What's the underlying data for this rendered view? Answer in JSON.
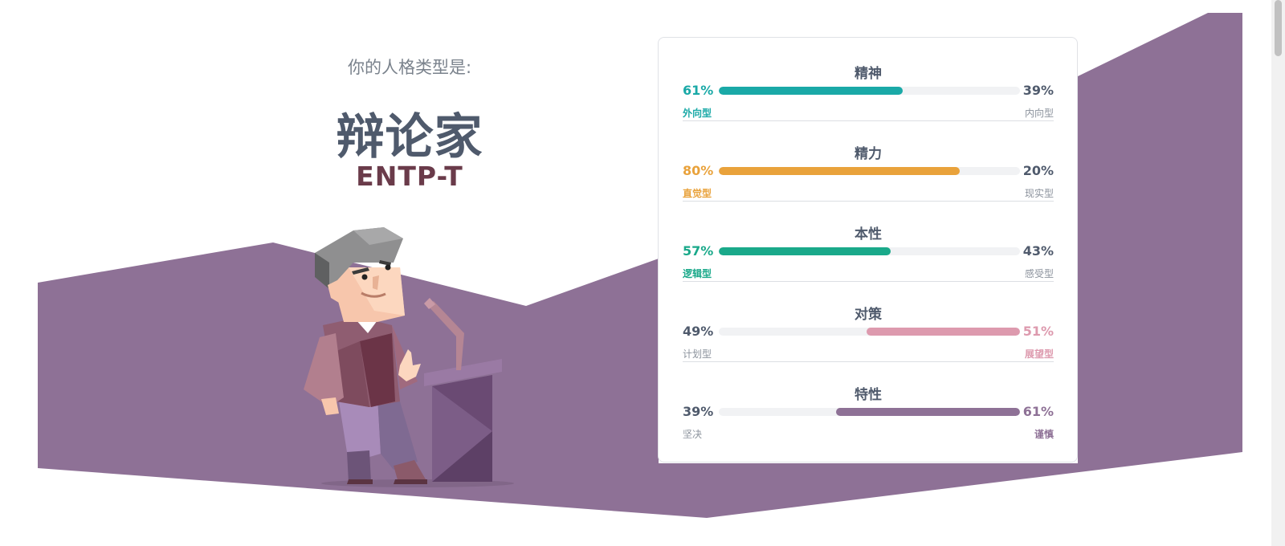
{
  "colors": {
    "purple": "#8e7196",
    "heading": "#4f5a6c",
    "code": "#6a3b4a",
    "muted": "#7a828c"
  },
  "hero": {
    "intro": "你的人格类型是:",
    "type_name": "辩论家",
    "type_code": "ENTP-T",
    "illustration": "debater-at-podium-illustration"
  },
  "traits": [
    {
      "title": "精神",
      "left_pct": "61%",
      "right_pct": "39%",
      "left_label": "外向型",
      "right_label": "内向型",
      "dominant": "left",
      "value": 0.61,
      "color": "#1aa9a7"
    },
    {
      "title": "精力",
      "left_pct": "80%",
      "right_pct": "20%",
      "left_label": "直觉型",
      "right_label": "现实型",
      "dominant": "left",
      "value": 0.8,
      "color": "#e9a23b"
    },
    {
      "title": "本性",
      "left_pct": "57%",
      "right_pct": "43%",
      "left_label": "逻辑型",
      "right_label": "感受型",
      "dominant": "left",
      "value": 0.57,
      "color": "#1aa98a"
    },
    {
      "title": "对策",
      "left_pct": "49%",
      "right_pct": "51%",
      "left_label": "计划型",
      "right_label": "展望型",
      "dominant": "right",
      "value": 0.51,
      "color": "#dd9aae"
    },
    {
      "title": "特性",
      "left_pct": "39%",
      "right_pct": "61%",
      "left_label": "坚决",
      "right_label": "谨慎",
      "dominant": "right",
      "value": 0.61,
      "color": "#8e7196"
    }
  ]
}
